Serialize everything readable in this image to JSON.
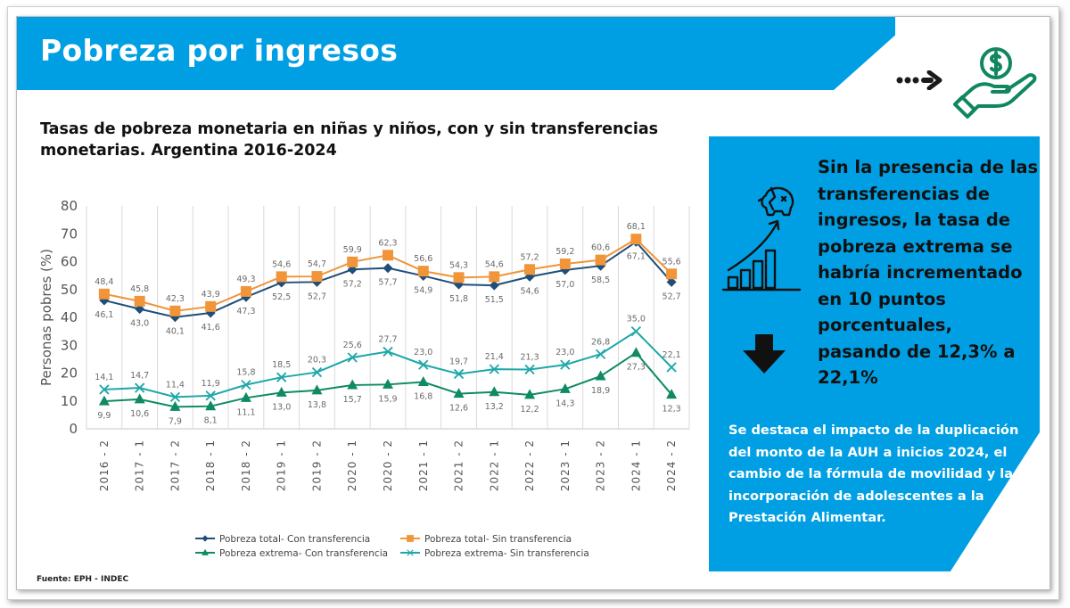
{
  "header": {
    "title": "Pobreza por ingresos",
    "icons": [
      "dotted-arrow-right-icon",
      "hand-holding-dollar-icon"
    ],
    "accent_color": "#009fe3"
  },
  "chart_title": "Tasas de pobreza monetaria en niñas y niños, con y sin transferencias monetarias. Argentina 2016-2024",
  "source": "Fuente: EPH - INDEC",
  "callout": {
    "icons": [
      "broken-piggy-bank-growth-chart-icon",
      "down-arrow-icon"
    ],
    "main_text": "Sin la presencia de las transferencias de ingresos, la tasa de pobreza extrema se habría incrementado en 10 puntos porcentuales, pasando de 12,3% a 22,1%",
    "note_text": "Se destaca el impacto de la duplicación del monto de la AUH a inicios 2024, el cambio de la fórmula de movilidad y la incorporación de adolescentes a la Prestación Alimentar."
  },
  "chart_data": {
    "type": "line",
    "title": "Tasas de pobreza monetaria en niñas y niños, con y sin transferencias monetarias. Argentina 2016-2024",
    "xlabel": "",
    "ylabel": "Personas pobres (%)",
    "ylim": [
      0,
      80
    ],
    "yticks": [
      0,
      10,
      20,
      30,
      40,
      50,
      60,
      70,
      80
    ],
    "grid": "vertical",
    "legend_position": "bottom",
    "categories": [
      "2016 - 2",
      "2017 - 1",
      "2017 - 2",
      "2018 - 1",
      "2018 - 2",
      "2019 - 1",
      "2019 - 2",
      "2020 - 1",
      "2020 - 2",
      "2021 - 1",
      "2021 - 2",
      "2022 - 1",
      "2022 - 2",
      "2023 - 1",
      "2023 - 2",
      "2024 - 1",
      "2024 - 2"
    ],
    "series": [
      {
        "name": "Pobreza total- Con transferencia",
        "color": "#1f4e79",
        "marker": "diamond",
        "label_position": "below",
        "values": [
          46.1,
          43.0,
          40.1,
          41.6,
          47.3,
          52.5,
          52.7,
          57.2,
          57.7,
          54.9,
          51.8,
          51.5,
          54.6,
          57.0,
          58.5,
          67.1,
          52.7
        ],
        "labels": [
          "46,1",
          "43,0",
          "40,1",
          "41,6",
          "47,3",
          "52,5",
          "52,7",
          "57,2",
          "57,7",
          "54,9",
          "51,8",
          "51,5",
          "54,6",
          "57,0",
          "58,5",
          "67,1",
          "52,7"
        ]
      },
      {
        "name": "Pobreza total- Sin transferencia",
        "color": "#f0953a",
        "marker": "square",
        "label_position": "above",
        "values": [
          48.4,
          45.8,
          42.3,
          43.9,
          49.3,
          54.6,
          54.7,
          59.9,
          62.3,
          56.6,
          54.3,
          54.6,
          57.2,
          59.2,
          60.6,
          68.1,
          55.6
        ],
        "labels": [
          "48,4",
          "45,8",
          "42,3",
          "43,9",
          "49,3",
          "54,6",
          "54,7",
          "59,9",
          "62,3",
          "56,6",
          "54,3",
          "54,6",
          "57,2",
          "59,2",
          "60,6",
          "68,1",
          "55,6"
        ]
      },
      {
        "name": "Pobreza extrema- Con transferencia",
        "color": "#0f8a64",
        "marker": "triangle",
        "label_position": "below",
        "values": [
          9.9,
          10.6,
          7.9,
          8.1,
          11.1,
          13.0,
          13.8,
          15.7,
          15.9,
          16.8,
          12.6,
          13.2,
          12.2,
          14.3,
          18.9,
          27.3,
          12.3
        ],
        "labels": [
          "9,9",
          "10,6",
          "7,9",
          "8,1",
          "11,1",
          "13,0",
          "13,8",
          "15,7",
          "15,9",
          "16,8",
          "12,6",
          "13,2",
          "12,2",
          "14,3",
          "18,9",
          "27,3",
          "12,3"
        ]
      },
      {
        "name": "Pobreza extrema- Sin transferencia",
        "color": "#1ea7a7",
        "marker": "x",
        "label_position": "above",
        "values": [
          14.1,
          14.7,
          11.4,
          11.9,
          15.8,
          18.5,
          20.3,
          25.6,
          27.7,
          23.0,
          19.7,
          21.4,
          21.3,
          23.0,
          26.8,
          35.0,
          22.1
        ],
        "labels": [
          "14,1",
          "14,7",
          "11,4",
          "11,9",
          "15,8",
          "18,5",
          "20,3",
          "25,6",
          "27,7",
          "23,0",
          "19,7",
          "21,4",
          "21,3",
          "23,0",
          "26,8",
          "35,0",
          "22,1"
        ]
      }
    ]
  }
}
